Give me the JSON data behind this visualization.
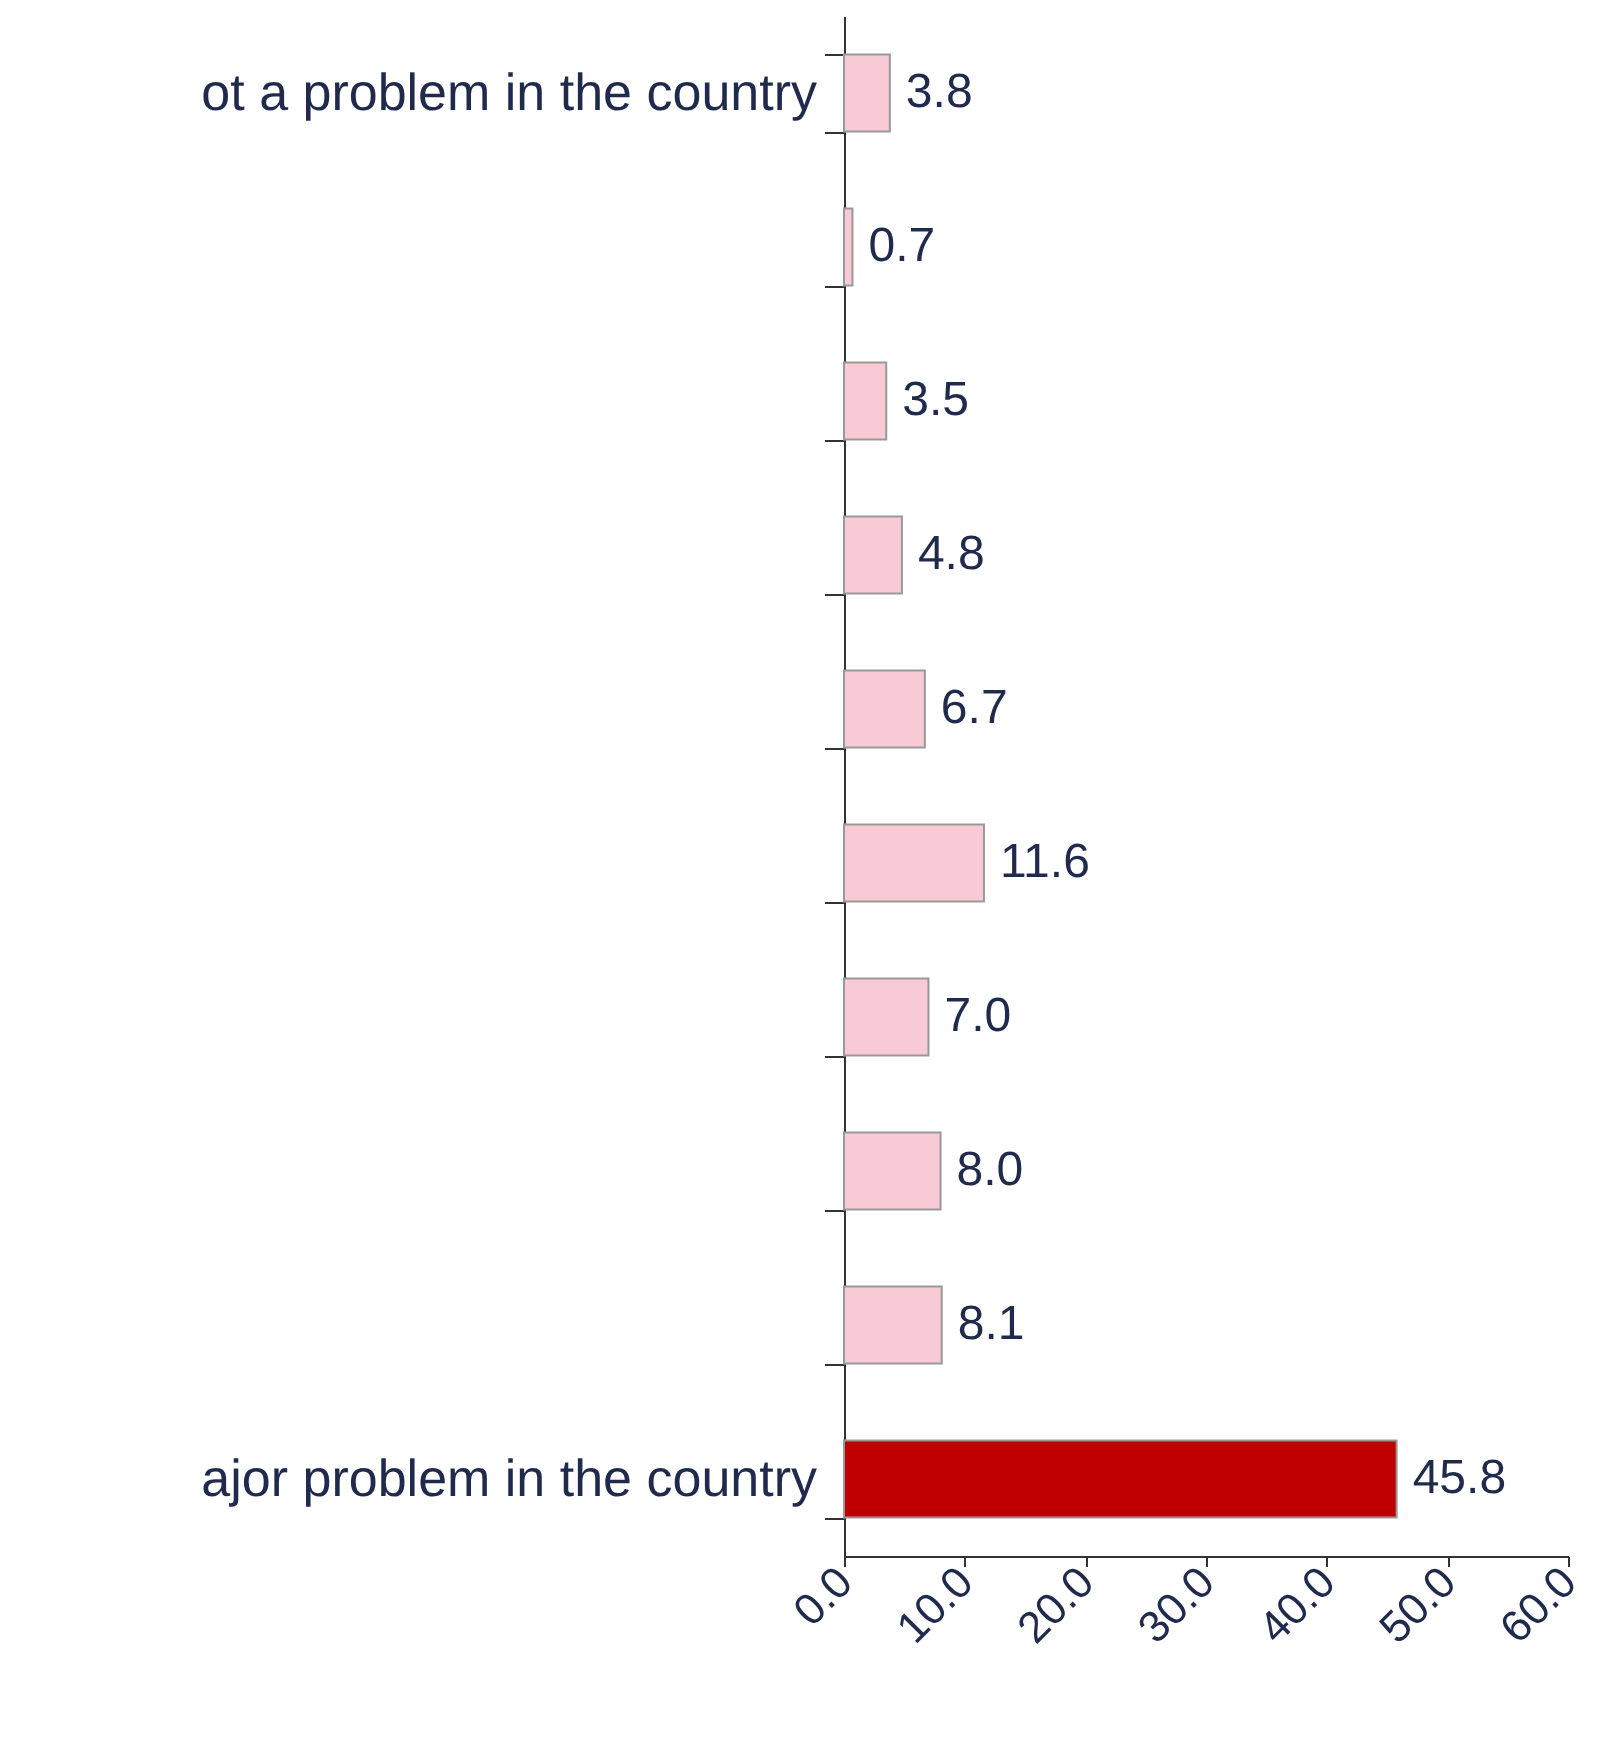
{
  "chart_data": {
    "type": "bar",
    "orientation": "horizontal",
    "categories": [
      "ot a problem in the country",
      null,
      null,
      null,
      null,
      null,
      null,
      null,
      null,
      "ajor problem in the country"
    ],
    "values": [
      3.8,
      0.7,
      3.5,
      4.8,
      6.7,
      11.6,
      7.0,
      8.0,
      8.1,
      45.8
    ],
    "colors": [
      "#f7cad5",
      "#f7cad5",
      "#f7cad5",
      "#f7cad5",
      "#f7cad5",
      "#f7cad5",
      "#f7cad5",
      "#f7cad5",
      "#f7cad5",
      "#c00000"
    ],
    "xlim": [
      0,
      60
    ],
    "xticks": [
      {
        "value": 0,
        "label": "0.0"
      },
      {
        "value": 10,
        "label": "10.0"
      },
      {
        "value": 20,
        "label": "20.0"
      },
      {
        "value": 30,
        "label": "30.0"
      },
      {
        "value": 40,
        "label": "40.0"
      },
      {
        "value": 50,
        "label": "50.0"
      },
      {
        "value": 60,
        "label": "60.0"
      }
    ],
    "value_labels": [
      "3.8",
      "0.7",
      "3.5",
      "4.8",
      "6.7",
      "11.6",
      "7.0",
      "8.0",
      "8.1",
      "45.8"
    ],
    "grid": false
  }
}
